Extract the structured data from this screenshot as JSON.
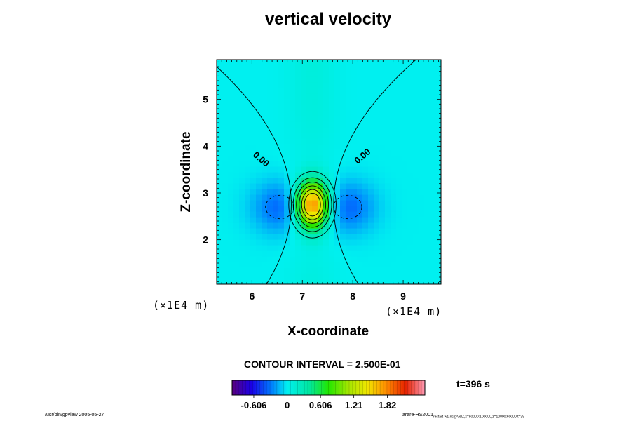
{
  "chart_data": {
    "type": "heatmap",
    "title": "vertical velocity",
    "xlabel": "X-coordinate",
    "ylabel": "Z-coordinate",
    "x_unit": "(×1E4 m)",
    "z_unit": "(×1E4 m)",
    "xlim": [
      5.3,
      9.75
    ],
    "ylim": [
      1.05,
      5.85
    ],
    "x_ticks": [
      "6",
      "7",
      "8",
      "9"
    ],
    "y_ticks": [
      "2",
      "3",
      "4",
      "5"
    ],
    "x_tick_values": [
      6,
      7,
      8,
      9
    ],
    "y_tick_values": [
      2,
      3,
      4,
      5
    ],
    "contour_interval_label": "CONTOUR INTERVAL = 2.500E-01",
    "contour_labels": [
      "0.00",
      "0.00"
    ],
    "colorbar": {
      "min": -1.0,
      "max": 2.5,
      "tick_labels": [
        "-0.606",
        "0",
        "0.606",
        "1.21",
        "1.82"
      ],
      "tick_values": [
        -0.606,
        0,
        0.606,
        1.21,
        1.82
      ]
    },
    "time_label": "t=396 s",
    "peak": {
      "x": 7.2,
      "z": 2.75,
      "value": 1.9
    },
    "negative_lobes": [
      {
        "x": 6.55,
        "z": 2.7,
        "value": -0.35
      },
      {
        "x": 7.9,
        "z": 2.7,
        "value": -0.35
      }
    ]
  },
  "footer": {
    "left": "/usr/bin/gpview 2005-05-27",
    "right_main": "arare-HS2001",
    "right_sub": "restart-w1.nc@VelZ,x=50000:100000,z=10000:60000,t=39"
  }
}
